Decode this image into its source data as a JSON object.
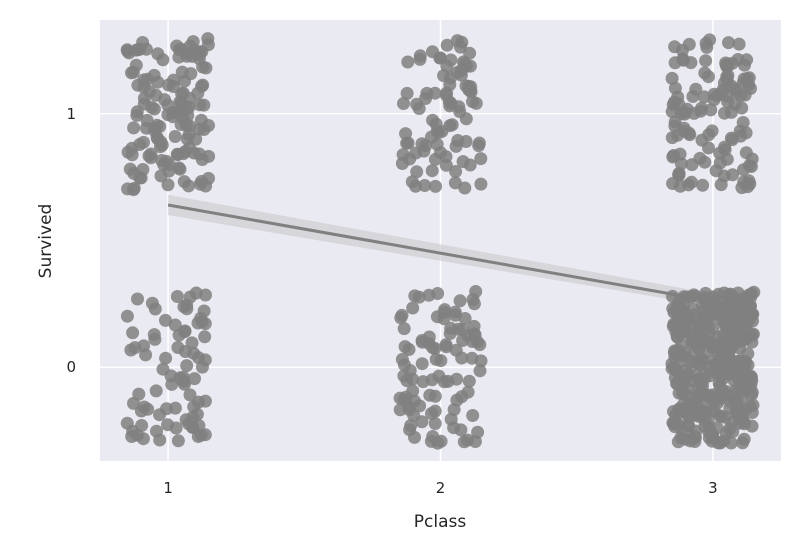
{
  "chart_data": {
    "type": "scatter",
    "title": "",
    "xlabel": "Pclass",
    "ylabel": "Survived",
    "x_ticks": [
      1,
      2,
      3
    ],
    "y_ticks": [
      0,
      1
    ],
    "xlim": [
      0.75,
      3.25
    ],
    "ylim": [
      -0.37,
      1.37
    ],
    "grid": true,
    "background": "#eaeaf2",
    "grid_color": "#ffffff",
    "point_color": "#808080",
    "line_color": "#808080",
    "ci_color": "#c8c8cc",
    "jitter": {
      "x": 0.15,
      "y": 0.3
    },
    "groups": [
      {
        "pclass": 1,
        "survived": 1,
        "count": 136
      },
      {
        "pclass": 1,
        "survived": 0,
        "count": 80
      },
      {
        "pclass": 2,
        "survived": 1,
        "count": 87
      },
      {
        "pclass": 2,
        "survived": 0,
        "count": 97
      },
      {
        "pclass": 3,
        "survived": 1,
        "count": 119
      },
      {
        "pclass": 3,
        "survived": 0,
        "count": 372
      }
    ],
    "regression": {
      "x": [
        1,
        3
      ],
      "y": [
        0.64,
        0.26
      ],
      "ci_lower": [
        0.6,
        0.24
      ],
      "ci_upper": [
        0.68,
        0.29
      ]
    }
  }
}
